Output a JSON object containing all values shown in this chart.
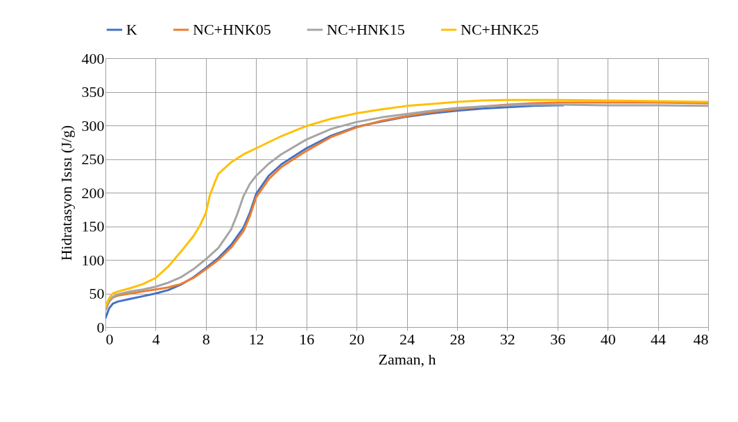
{
  "chart_data": {
    "type": "line",
    "xlabel": "Zaman, h",
    "ylabel": "Hidratasyon Isısı (J/g)",
    "xlim": [
      0,
      48
    ],
    "xticks": [
      0,
      4,
      8,
      12,
      16,
      20,
      24,
      28,
      32,
      36,
      40,
      44,
      48
    ],
    "ylim": [
      0,
      400
    ],
    "yticks": [
      0,
      50,
      100,
      150,
      200,
      250,
      300,
      350,
      400
    ],
    "grid": true,
    "legend": "top",
    "marker": "none",
    "line_style": "solid",
    "series": [
      {
        "name": "K",
        "color": "#4472c4",
        "x": [
          0,
          0.3,
          0.6,
          1,
          2,
          3,
          4,
          5,
          6,
          7,
          8,
          9,
          10,
          11,
          11.5,
          12,
          13,
          14,
          16,
          18,
          20,
          22,
          24,
          26,
          28,
          30,
          32,
          34,
          36,
          36.5
        ],
        "values": [
          13,
          28,
          35,
          38,
          42,
          46,
          50,
          55,
          63,
          74,
          88,
          103,
          122,
          148,
          170,
          198,
          225,
          242,
          266,
          285,
          298,
          306,
          313,
          318,
          322,
          325,
          327,
          329,
          330,
          330
        ]
      },
      {
        "name": "NC+HNK05",
        "color": "#ed7d31",
        "x": [
          0,
          0.3,
          0.6,
          1,
          2,
          3,
          4,
          5,
          6,
          7,
          8,
          9,
          10,
          11,
          11.5,
          12,
          13,
          14,
          16,
          18,
          20,
          22,
          24,
          26,
          28,
          30,
          32,
          34,
          36,
          40,
          44,
          48
        ],
        "values": [
          25,
          38,
          44,
          47,
          50,
          53,
          56,
          59,
          64,
          73,
          86,
          100,
          118,
          143,
          165,
          193,
          220,
          238,
          262,
          283,
          297,
          307,
          314,
          320,
          324,
          328,
          331,
          333,
          334,
          334,
          334,
          333
        ]
      },
      {
        "name": "NC+HNK15",
        "color": "#a5a5a5",
        "x": [
          0,
          0.3,
          0.6,
          1,
          2,
          3,
          4,
          5,
          6,
          7,
          8,
          9,
          10,
          10.5,
          11,
          11.5,
          12,
          13,
          14,
          16,
          18,
          20,
          22,
          24,
          26,
          28,
          30,
          32,
          34,
          36,
          40,
          44,
          48
        ],
        "values": [
          25,
          38,
          45,
          49,
          53,
          56,
          60,
          66,
          74,
          86,
          101,
          118,
          145,
          168,
          195,
          213,
          225,
          243,
          257,
          279,
          295,
          305,
          312,
          317,
          322,
          326,
          328,
          330,
          331,
          331,
          330,
          330,
          329
        ]
      },
      {
        "name": "NC+HNK25",
        "color": "#ffc000",
        "x": [
          0,
          0.3,
          0.6,
          1,
          2,
          3,
          4,
          5,
          6,
          7,
          7.5,
          8,
          8.3,
          8.7,
          9,
          10,
          11,
          12,
          14,
          16,
          18,
          20,
          22,
          24,
          26,
          28,
          30,
          32,
          36,
          40,
          44,
          48
        ],
        "values": [
          30,
          43,
          50,
          53,
          58,
          64,
          73,
          90,
          112,
          135,
          150,
          170,
          195,
          215,
          228,
          245,
          257,
          266,
          284,
          299,
          310,
          318,
          324,
          329,
          332,
          335,
          337,
          338,
          338,
          337,
          336,
          335
        ]
      }
    ]
  }
}
